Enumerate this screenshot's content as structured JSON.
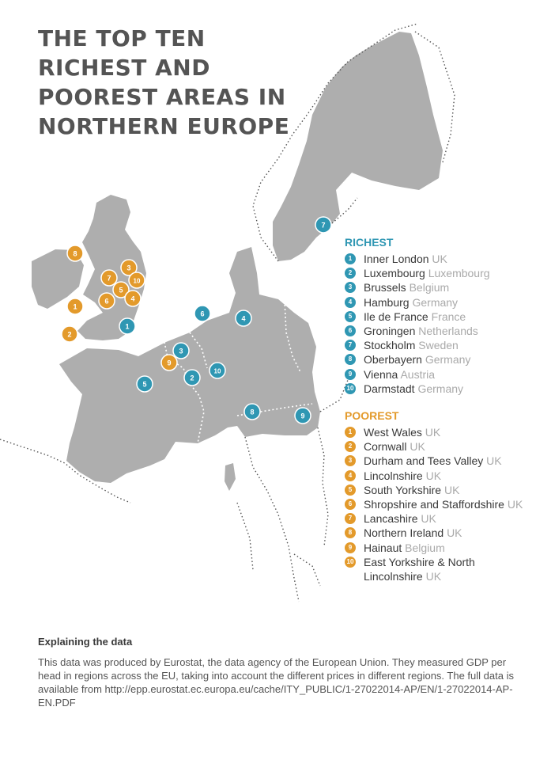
{
  "title": "THE TOP TEN RICHEST AND POOREST AREAS IN NORTHERN EUROPE",
  "colors": {
    "land": "#aeaeae",
    "richest": "#2f97b3",
    "poorest": "#e39a2b",
    "title": "#545454"
  },
  "legend": {
    "richest": {
      "heading": "RICHEST",
      "items": [
        {
          "num": "1",
          "name": "Inner London",
          "country": "UK"
        },
        {
          "num": "2",
          "name": "Luxembourg",
          "country": "Luxembourg"
        },
        {
          "num": "3",
          "name": "Brussels",
          "country": "Belgium"
        },
        {
          "num": "4",
          "name": "Hamburg",
          "country": "Germany"
        },
        {
          "num": "5",
          "name": "Ile de France",
          "country": "France"
        },
        {
          "num": "6",
          "name": "Groningen",
          "country": "Netherlands"
        },
        {
          "num": "7",
          "name": "Stockholm",
          "country": "Sweden"
        },
        {
          "num": "8",
          "name": "Oberbayern",
          "country": "Germany"
        },
        {
          "num": "9",
          "name": "Vienna",
          "country": "Austria"
        },
        {
          "num": "10",
          "name": "Darmstadt",
          "country": "Germany"
        }
      ]
    },
    "poorest": {
      "heading": "POOREST",
      "items": [
        {
          "num": "1",
          "name": "West Wales",
          "country": "UK"
        },
        {
          "num": "2",
          "name": "Cornwall",
          "country": "UK"
        },
        {
          "num": "3",
          "name": "Durham and Tees Valley",
          "country": "UK"
        },
        {
          "num": "4",
          "name": "Lincolnshire",
          "country": "UK"
        },
        {
          "num": "5",
          "name": "South Yorkshire",
          "country": "UK"
        },
        {
          "num": "6",
          "name": "Shropshire and Staffordshire",
          "country": "UK"
        },
        {
          "num": "7",
          "name": "Lancashire",
          "country": "UK"
        },
        {
          "num": "8",
          "name": "Northern Ireland",
          "country": "UK"
        },
        {
          "num": "9",
          "name": "Hainaut",
          "country": "Belgium"
        },
        {
          "num": "10",
          "name": "East Yorkshire & North Lincolnshire",
          "country": "UK"
        }
      ]
    }
  },
  "markers": {
    "richest": [
      "1",
      "2",
      "3",
      "4",
      "5",
      "6",
      "7",
      "8",
      "9",
      "10"
    ],
    "poorest": [
      "1",
      "2",
      "3",
      "4",
      "5",
      "6",
      "7",
      "8",
      "9",
      "10"
    ]
  },
  "notes": {
    "heading": "Explaining the data",
    "body": "This data was produced by Eurostat, the data agency of the European Union. They measured GDP per head in regions across the EU, taking into account the different prices in different regions. The full data is available from http://epp.eurostat.ec.europa.eu/cache/ITY_PUBLIC/1-27022014-AP/EN/1-27022014-AP-EN.PDF"
  }
}
